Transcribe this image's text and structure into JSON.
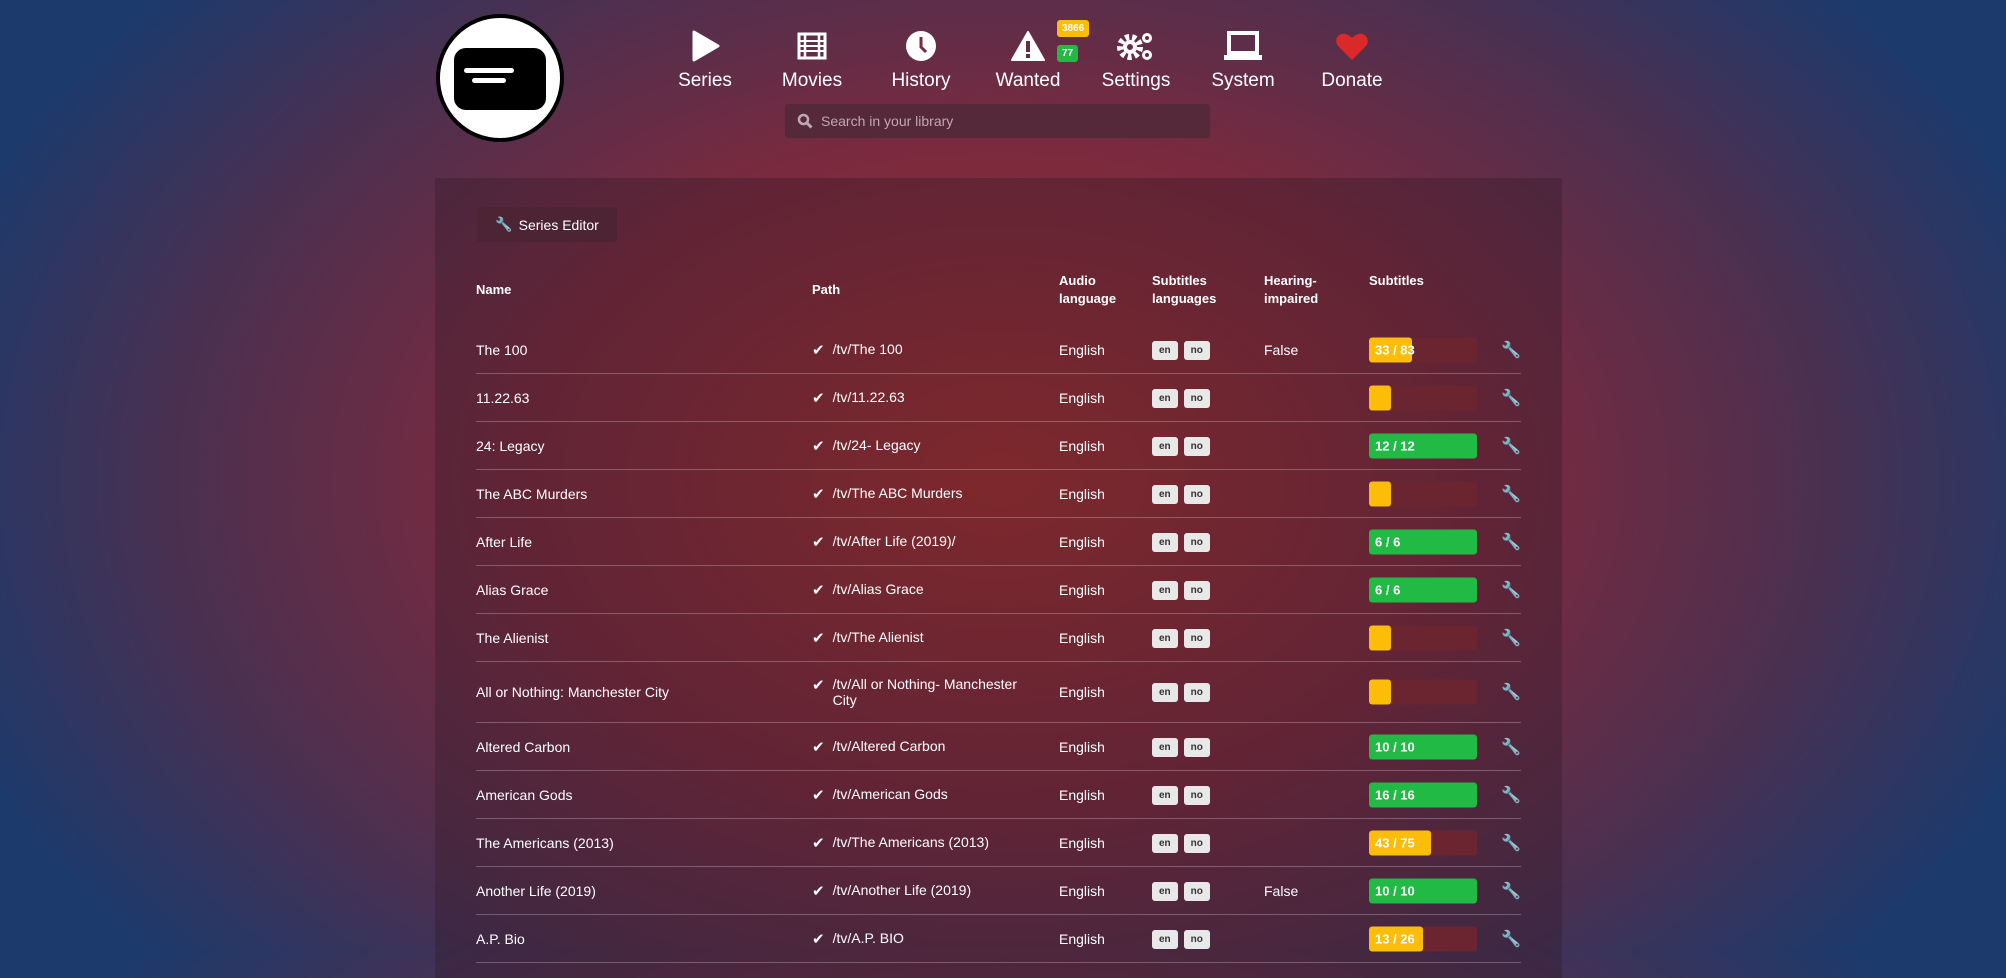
{
  "nav": {
    "items": [
      {
        "label": "Series",
        "icon": "play-icon"
      },
      {
        "label": "Movies",
        "icon": "film-icon"
      },
      {
        "label": "History",
        "icon": "clock-icon"
      },
      {
        "label": "Wanted",
        "icon": "warning-icon",
        "badges": [
          "3866",
          "77"
        ]
      },
      {
        "label": "Settings",
        "icon": "gears-icon"
      },
      {
        "label": "System",
        "icon": "laptop-icon"
      },
      {
        "label": "Donate",
        "icon": "heart-icon"
      }
    ]
  },
  "search": {
    "placeholder": "Search in your library"
  },
  "toolbar": {
    "series_editor": "Series Editor"
  },
  "colors": {
    "partial": "#fbbd08",
    "complete": "#21ba45",
    "heart": "#db2828"
  },
  "table": {
    "headers": [
      "Name",
      "Path",
      "Audio language",
      "Subtitles languages",
      "Hearing-impaired",
      "Subtitles"
    ],
    "rows": [
      {
        "name": "The 100",
        "path": "/tv/The 100",
        "audio": "English",
        "langs": [
          "en",
          "no"
        ],
        "hi": "False",
        "subs": "33 / 83",
        "have": 33,
        "total": 83
      },
      {
        "name": "11.22.63",
        "path": "/tv/11.22.63",
        "audio": "English",
        "langs": [
          "en",
          "no"
        ],
        "hi": "",
        "subs": "",
        "have": 0,
        "total": 0
      },
      {
        "name": "24: Legacy",
        "path": "/tv/24- Legacy",
        "audio": "English",
        "langs": [
          "en",
          "no"
        ],
        "hi": "",
        "subs": "12 / 12",
        "have": 12,
        "total": 12
      },
      {
        "name": "The ABC Murders",
        "path": "/tv/The ABC Murders",
        "audio": "English",
        "langs": [
          "en",
          "no"
        ],
        "hi": "",
        "subs": "",
        "have": 0,
        "total": 0
      },
      {
        "name": "After Life",
        "path": "/tv/After Life (2019)/",
        "audio": "English",
        "langs": [
          "en",
          "no"
        ],
        "hi": "",
        "subs": "6 / 6",
        "have": 6,
        "total": 6
      },
      {
        "name": "Alias Grace",
        "path": "/tv/Alias Grace",
        "audio": "English",
        "langs": [
          "en",
          "no"
        ],
        "hi": "",
        "subs": "6 / 6",
        "have": 6,
        "total": 6
      },
      {
        "name": "The Alienist",
        "path": "/tv/The Alienist",
        "audio": "English",
        "langs": [
          "en",
          "no"
        ],
        "hi": "",
        "subs": "",
        "have": 0,
        "total": 0
      },
      {
        "name": "All or Nothing: Manchester City",
        "path": "/tv/All or Nothing- Manchester City",
        "audio": "English",
        "langs": [
          "en",
          "no"
        ],
        "hi": "",
        "subs": "",
        "have": 0,
        "total": 0
      },
      {
        "name": "Altered Carbon",
        "path": "/tv/Altered Carbon",
        "audio": "English",
        "langs": [
          "en",
          "no"
        ],
        "hi": "",
        "subs": "10 / 10",
        "have": 10,
        "total": 10
      },
      {
        "name": "American Gods",
        "path": "/tv/American Gods",
        "audio": "English",
        "langs": [
          "en",
          "no"
        ],
        "hi": "",
        "subs": "16 / 16",
        "have": 16,
        "total": 16
      },
      {
        "name": "The Americans (2013)",
        "path": "/tv/The Americans (2013)",
        "audio": "English",
        "langs": [
          "en",
          "no"
        ],
        "hi": "",
        "subs": "43 / 75",
        "have": 43,
        "total": 75
      },
      {
        "name": "Another Life (2019)",
        "path": "/tv/Another Life (2019)",
        "audio": "English",
        "langs": [
          "en",
          "no"
        ],
        "hi": "False",
        "subs": "10 / 10",
        "have": 10,
        "total": 10
      },
      {
        "name": "A.P. Bio",
        "path": "/tv/A.P. BIO",
        "audio": "English",
        "langs": [
          "en",
          "no"
        ],
        "hi": "",
        "subs": "13 / 26",
        "have": 13,
        "total": 26
      }
    ]
  }
}
